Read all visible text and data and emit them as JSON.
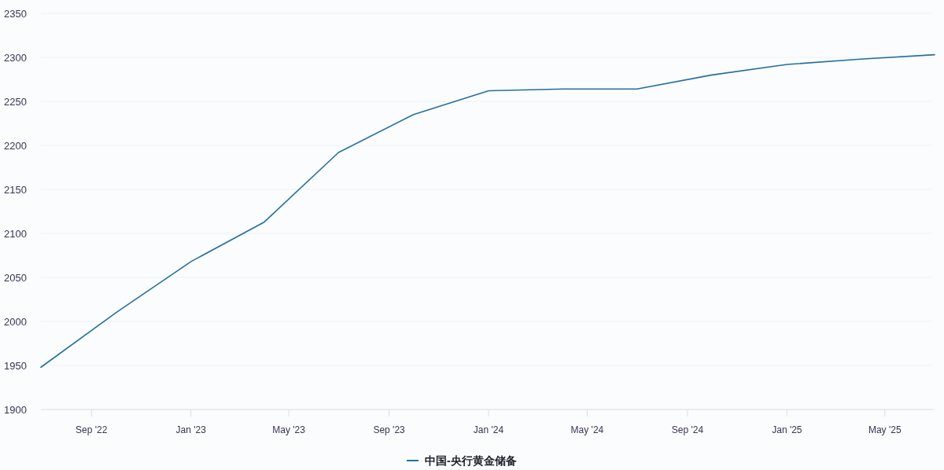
{
  "chart_data": {
    "type": "line",
    "x": [
      "2022-07-01",
      "2022-10-01",
      "2023-01-01",
      "2023-04-01",
      "2023-07-01",
      "2023-10-01",
      "2024-01-01",
      "2024-04-01",
      "2024-07-01",
      "2024-10-01",
      "2025-01-01",
      "2025-04-01",
      "2025-07-01"
    ],
    "series": [
      {
        "name": "中国-央行黄金储备",
        "color": "#24709e",
        "values": [
          1948,
          2010,
          2068,
          2113,
          2192,
          2235,
          2262,
          2264,
          2264,
          2280,
          2292,
          2298,
          2303
        ]
      }
    ],
    "xlim": [
      "2022-07-01",
      "2025-07-01"
    ],
    "xticks": [
      {
        "value": "2022-09-01",
        "label": "Sep '22"
      },
      {
        "value": "2023-01-01",
        "label": "Jan '23"
      },
      {
        "value": "2023-05-01",
        "label": "May '23"
      },
      {
        "value": "2023-09-01",
        "label": "Sep '23"
      },
      {
        "value": "2024-01-01",
        "label": "Jan '24"
      },
      {
        "value": "2024-05-01",
        "label": "May '24"
      },
      {
        "value": "2024-09-01",
        "label": "Sep '24"
      },
      {
        "value": "2025-01-01",
        "label": "Jan '25"
      },
      {
        "value": "2025-05-01",
        "label": "May '25"
      }
    ],
    "ylim": [
      1900,
      2350
    ],
    "yticks": [
      1900,
      1950,
      2000,
      2050,
      2100,
      2150,
      2200,
      2250,
      2300,
      2350
    ],
    "grid": "y",
    "legend": "bottom"
  }
}
